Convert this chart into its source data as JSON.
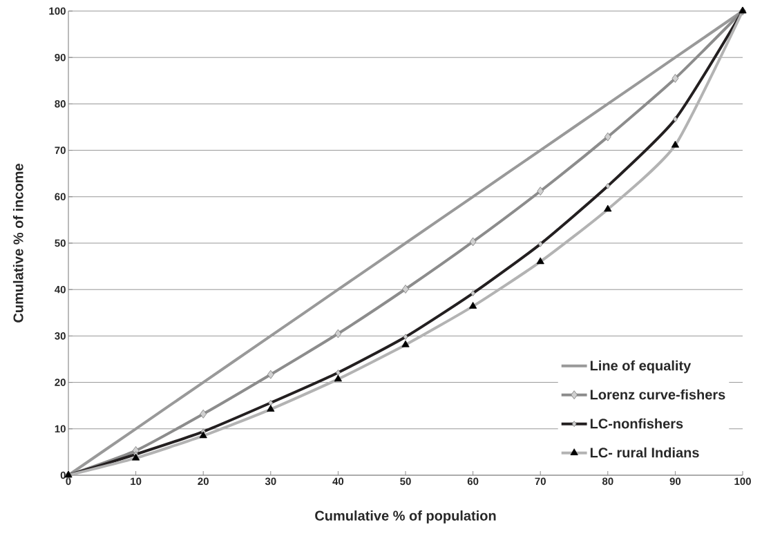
{
  "chart_data": {
    "type": "line",
    "xlabel": "Cumulative % of population",
    "ylabel": "Cumulative % of income",
    "x": [
      0,
      10,
      20,
      30,
      40,
      50,
      60,
      70,
      80,
      90,
      100
    ],
    "series": [
      {
        "name": "Line of equality",
        "color": "#999999",
        "marker": "none",
        "values": [
          0,
          10,
          20,
          30,
          40,
          50,
          60,
          70,
          80,
          90,
          100
        ]
      },
      {
        "name": "Lorenz curve-fishers",
        "color": "#8c8c8c",
        "marker": "diamond",
        "values": [
          0,
          5.3,
          13.2,
          21.7,
          30.5,
          40.1,
          50.3,
          61.2,
          72.9,
          85.5,
          100
        ]
      },
      {
        "name": "LC-nonfishers",
        "color": "#231f20",
        "marker": "diamond",
        "values": [
          0,
          4.5,
          9.4,
          15.6,
          22.1,
          29.8,
          39.2,
          49.8,
          62.3,
          76.7,
          100
        ]
      },
      {
        "name": "LC- rural Indians",
        "color": "#b3b3b3",
        "marker": "triangle",
        "values": [
          0,
          3.7,
          8.5,
          14.2,
          20.7,
          28.1,
          36.4,
          46.0,
          57.3,
          71.1,
          100
        ]
      }
    ],
    "xlim": [
      0,
      100
    ],
    "ylim": [
      0,
      100
    ],
    "xticks": [
      0,
      10,
      20,
      30,
      40,
      50,
      60,
      70,
      80,
      90,
      100
    ],
    "yticks": [
      0,
      10,
      20,
      30,
      40,
      50,
      60,
      70,
      80,
      90,
      100
    ],
    "grid": "y",
    "legend": "bottom right"
  }
}
